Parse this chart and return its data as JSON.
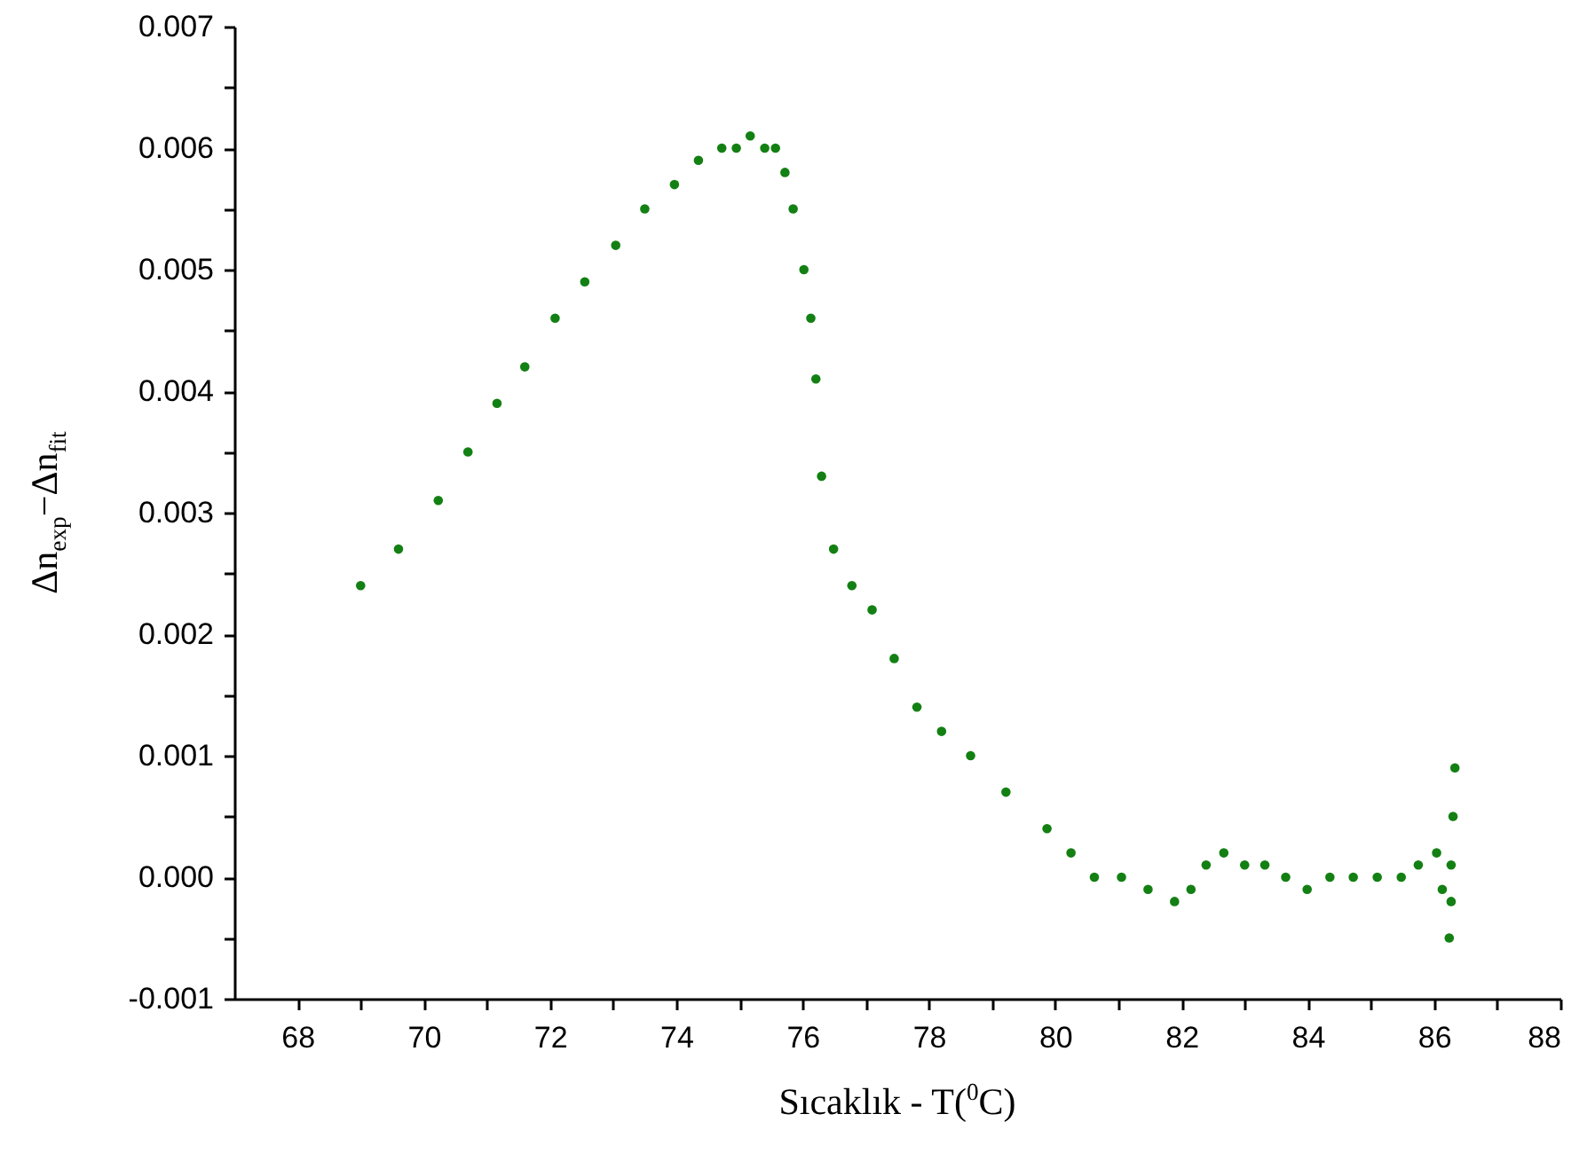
{
  "chart_data": {
    "type": "scatter",
    "xlabel": "Sıcaklık - T($^{0}$C)",
    "ylabel": "Δn$_{exp}$−Δn$_{fit}$",
    "marker": "circle",
    "xlim": [
      67,
      88
    ],
    "xticks": [
      68,
      {
        "value": 69,
        "label": null
      },
      70,
      {
        "value": 71,
        "label": null
      },
      72,
      {
        "value": 73,
        "label": null
      },
      74,
      {
        "value": 75,
        "label": null
      },
      76,
      {
        "value": 77,
        "label": null
      },
      78,
      {
        "value": 79,
        "label": null
      },
      80,
      {
        "value": 81,
        "label": null
      },
      82,
      {
        "value": 83,
        "label": null
      },
      84,
      {
        "value": 85,
        "label": null
      },
      86,
      {
        "value": 87,
        "label": null
      },
      88
    ],
    "ylim": [
      -0.001,
      0.007
    ],
    "yticks": [
      {
        "value": -0.001,
        "label": "-0.001"
      },
      {
        "value": -0.0005,
        "label": null
      },
      {
        "value": 0,
        "label": "0.000"
      },
      {
        "value": 0.0005,
        "label": null
      },
      {
        "value": 0.001,
        "label": "0.001"
      },
      {
        "value": 0.0015,
        "label": null
      },
      {
        "value": 0.002,
        "label": "0.002"
      },
      {
        "value": 0.0025,
        "label": null
      },
      {
        "value": 0.003,
        "label": "0.003"
      },
      {
        "value": 0.0035,
        "label": null
      },
      {
        "value": 0.004,
        "label": "0.004"
      },
      {
        "value": 0.0045,
        "label": null
      },
      {
        "value": 0.005,
        "label": "0.005"
      },
      {
        "value": 0.0055,
        "label": null
      },
      {
        "value": 0.006,
        "label": "0.006"
      },
      {
        "value": 0.0065,
        "label": null
      },
      {
        "value": 0.007,
        "label": "0.007"
      }
    ],
    "x": [
      69.0,
      69.6,
      70.23,
      70.7,
      71.16,
      71.6,
      72.08,
      72.55,
      73.04,
      73.5,
      73.97,
      74.35,
      74.72,
      74.95,
      75.17,
      75.4,
      75.57,
      75.72,
      75.85,
      76.02,
      76.13,
      76.21,
      76.3,
      76.49,
      76.78,
      77.1,
      77.45,
      77.81,
      78.2,
      78.66,
      79.22,
      79.87,
      80.25,
      80.62,
      81.05,
      81.47,
      81.89,
      82.15,
      82.39,
      82.67,
      83.0,
      83.32,
      83.65,
      83.99,
      84.35,
      84.72,
      85.1,
      85.48,
      85.75,
      86.04,
      86.13,
      86.24,
      86.27,
      86.27,
      86.3,
      86.33
    ],
    "series": [
      {
        "color": "#138013",
        "values": [
          0.0024,
          0.0027,
          0.0031,
          0.0035,
          0.0039,
          0.0042,
          0.0046,
          0.0049,
          0.0052,
          0.0055,
          0.0057,
          0.0059,
          0.006,
          0.006,
          0.0061,
          0.006,
          0.006,
          0.0058,
          0.0055,
          0.005,
          0.0046,
          0.0041,
          0.0033,
          0.0027,
          0.0024,
          0.0022,
          0.0018,
          0.0014,
          0.0012,
          0.001,
          0.0007,
          0.0004,
          0.0002,
          0.0,
          0.0,
          -0.0001,
          -0.0002,
          -0.0001,
          0.0001,
          0.0002,
          0.0001,
          0.0001,
          0.0,
          -0.0001,
          0.0,
          0.0,
          0.0,
          0.0,
          0.0001,
          0.0002,
          -0.0001,
          -0.0005,
          -0.0002,
          0.0001,
          0.0005,
          0.0009
        ]
      }
    ]
  }
}
